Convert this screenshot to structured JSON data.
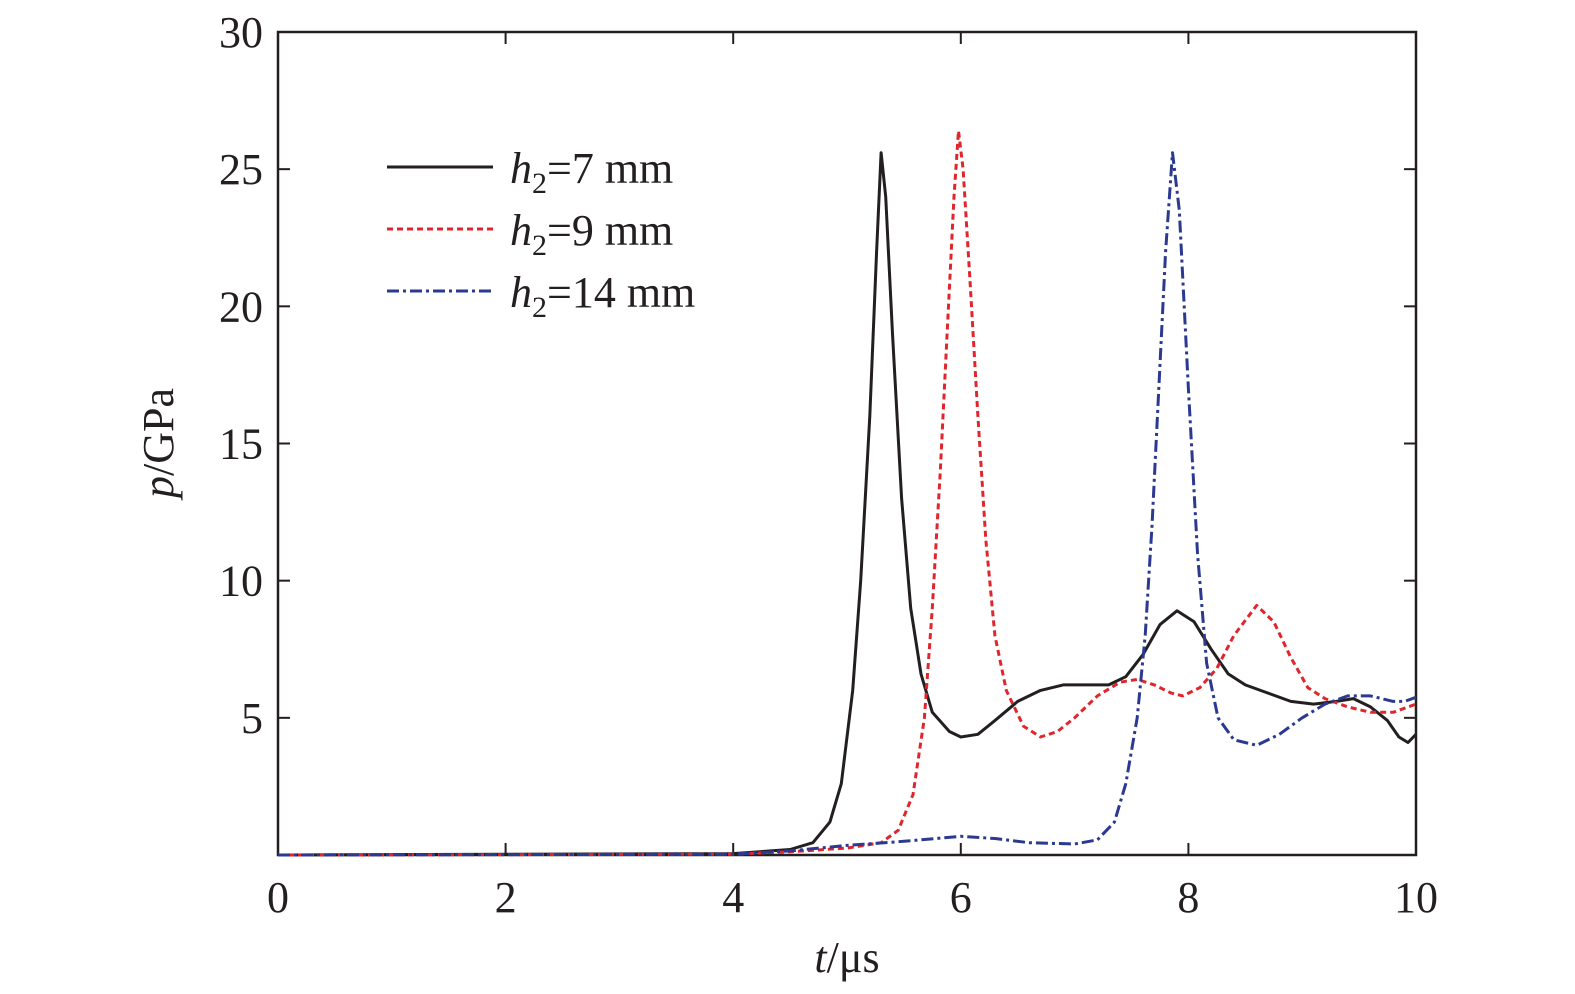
{
  "chart_data": {
    "type": "line",
    "title": "",
    "xlabel": {
      "var": "t",
      "unit": "/μs"
    },
    "ylabel": {
      "var": "p",
      "unit": "/GPa"
    },
    "xlim": [
      0,
      10
    ],
    "ylim": [
      0,
      30
    ],
    "xticks": [
      0,
      2,
      4,
      6,
      8,
      10
    ],
    "xtick_labels": [
      "0",
      "2",
      "4",
      "6",
      "8",
      "10"
    ],
    "yticks": [
      5,
      10,
      15,
      20,
      25,
      30
    ],
    "ytick_labels": [
      "5",
      "10",
      "15",
      "20",
      "25",
      "30"
    ],
    "grid": false,
    "legend_position": "top-left",
    "series": [
      {
        "name": "h2=7 mm",
        "legend": {
          "var": "h",
          "sub": "2",
          "rest": "=7 mm"
        },
        "color": "#231f20",
        "style": "solid",
        "points": [
          [
            0,
            0
          ],
          [
            4.0,
            0.05
          ],
          [
            4.5,
            0.2
          ],
          [
            4.7,
            0.45
          ],
          [
            4.85,
            1.2
          ],
          [
            4.95,
            2.6
          ],
          [
            5.05,
            6
          ],
          [
            5.12,
            10
          ],
          [
            5.2,
            16
          ],
          [
            5.26,
            22
          ],
          [
            5.3,
            25.6
          ],
          [
            5.34,
            24
          ],
          [
            5.4,
            19
          ],
          [
            5.48,
            13
          ],
          [
            5.56,
            9
          ],
          [
            5.65,
            6.6
          ],
          [
            5.75,
            5.2
          ],
          [
            5.9,
            4.5
          ],
          [
            6.0,
            4.3
          ],
          [
            6.15,
            4.4
          ],
          [
            6.3,
            4.9
          ],
          [
            6.5,
            5.6
          ],
          [
            6.7,
            6.0
          ],
          [
            6.9,
            6.2
          ],
          [
            7.1,
            6.2
          ],
          [
            7.3,
            6.2
          ],
          [
            7.45,
            6.5
          ],
          [
            7.6,
            7.3
          ],
          [
            7.75,
            8.4
          ],
          [
            7.9,
            8.9
          ],
          [
            8.05,
            8.5
          ],
          [
            8.2,
            7.5
          ],
          [
            8.35,
            6.6
          ],
          [
            8.5,
            6.2
          ],
          [
            8.7,
            5.9
          ],
          [
            8.9,
            5.6
          ],
          [
            9.1,
            5.5
          ],
          [
            9.3,
            5.6
          ],
          [
            9.45,
            5.7
          ],
          [
            9.6,
            5.4
          ],
          [
            9.75,
            4.9
          ],
          [
            9.85,
            4.3
          ],
          [
            9.93,
            4.1
          ],
          [
            10,
            4.4
          ]
        ]
      },
      {
        "name": "h2=9 mm",
        "legend": {
          "var": "h",
          "sub": "2",
          "rest": "=9 mm"
        },
        "color": "#e0262c",
        "style": "dashed",
        "points": [
          [
            0,
            0
          ],
          [
            4.0,
            0.03
          ],
          [
            4.5,
            0.12
          ],
          [
            5.0,
            0.25
          ],
          [
            5.3,
            0.45
          ],
          [
            5.45,
            0.9
          ],
          [
            5.58,
            2.2
          ],
          [
            5.68,
            5
          ],
          [
            5.75,
            9
          ],
          [
            5.82,
            14
          ],
          [
            5.88,
            19
          ],
          [
            5.94,
            24
          ],
          [
            5.98,
            26.4
          ],
          [
            6.02,
            25
          ],
          [
            6.08,
            21
          ],
          [
            6.15,
            16
          ],
          [
            6.22,
            11.5
          ],
          [
            6.3,
            8
          ],
          [
            6.4,
            6
          ],
          [
            6.55,
            4.7
          ],
          [
            6.7,
            4.3
          ],
          [
            6.85,
            4.5
          ],
          [
            7.0,
            5
          ],
          [
            7.2,
            5.8
          ],
          [
            7.4,
            6.3
          ],
          [
            7.55,
            6.4
          ],
          [
            7.7,
            6.2
          ],
          [
            7.85,
            5.9
          ],
          [
            7.95,
            5.8
          ],
          [
            8.1,
            6.1
          ],
          [
            8.25,
            6.8
          ],
          [
            8.4,
            8
          ],
          [
            8.6,
            9.1
          ],
          [
            8.75,
            8.5
          ],
          [
            8.9,
            7.2
          ],
          [
            9.05,
            6.1
          ],
          [
            9.2,
            5.7
          ],
          [
            9.4,
            5.4
          ],
          [
            9.6,
            5.2
          ],
          [
            9.8,
            5.2
          ],
          [
            10,
            5.5
          ]
        ]
      },
      {
        "name": "h2=14 mm",
        "legend": {
          "var": "h",
          "sub": "2",
          "rest": "=14 mm"
        },
        "color": "#2b3990",
        "style": "dashdot",
        "points": [
          [
            0,
            0
          ],
          [
            4.0,
            0.03
          ],
          [
            4.5,
            0.15
          ],
          [
            5.0,
            0.35
          ],
          [
            5.5,
            0.5
          ],
          [
            6.0,
            0.68
          ],
          [
            6.3,
            0.6
          ],
          [
            6.6,
            0.45
          ],
          [
            7.0,
            0.4
          ],
          [
            7.2,
            0.55
          ],
          [
            7.35,
            1.2
          ],
          [
            7.45,
            2.6
          ],
          [
            7.55,
            5
          ],
          [
            7.62,
            8
          ],
          [
            7.68,
            12
          ],
          [
            7.74,
            17
          ],
          [
            7.8,
            22
          ],
          [
            7.86,
            25.6
          ],
          [
            7.92,
            23.5
          ],
          [
            8.0,
            17
          ],
          [
            8.08,
            11
          ],
          [
            8.16,
            7
          ],
          [
            8.26,
            5
          ],
          [
            8.4,
            4.2
          ],
          [
            8.6,
            4
          ],
          [
            8.8,
            4.4
          ],
          [
            9.0,
            5.0
          ],
          [
            9.2,
            5.5
          ],
          [
            9.4,
            5.8
          ],
          [
            9.6,
            5.8
          ],
          [
            9.8,
            5.6
          ],
          [
            9.9,
            5.6
          ],
          [
            10,
            5.75
          ]
        ]
      }
    ]
  }
}
